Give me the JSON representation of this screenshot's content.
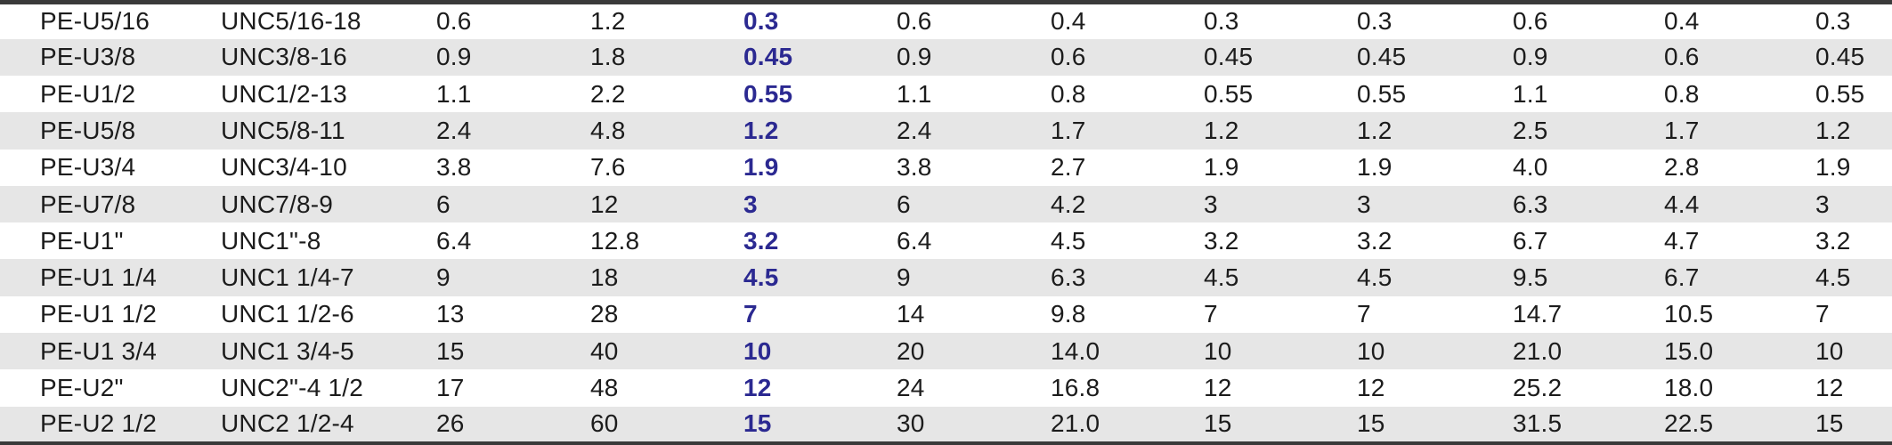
{
  "colors": {
    "accent_blue": "#2b2991",
    "stripe_gray": "#e6e6e6",
    "border_dark": "#3a3a3a",
    "text": "#1c1c1c",
    "background": "#ffffff"
  },
  "table": {
    "description": "striped spec table, no header row visible",
    "highlight_column_index": 4,
    "column_count": 12,
    "rows": [
      [
        "PE-U5/16",
        "UNC5/16-18",
        "0.6",
        "1.2",
        "0.3",
        "0.6",
        "0.4",
        "0.3",
        "0.3",
        "0.6",
        "0.4",
        "0.3"
      ],
      [
        "PE-U3/8",
        "UNC3/8-16",
        "0.9",
        "1.8",
        "0.45",
        "0.9",
        "0.6",
        "0.45",
        "0.45",
        "0.9",
        "0.6",
        "0.45"
      ],
      [
        "PE-U1/2",
        "UNC1/2-13",
        "1.1",
        "2.2",
        "0.55",
        "1.1",
        "0.8",
        "0.55",
        "0.55",
        "1.1",
        "0.8",
        "0.55"
      ],
      [
        "PE-U5/8",
        "UNC5/8-11",
        "2.4",
        "4.8",
        "1.2",
        "2.4",
        "1.7",
        "1.2",
        "1.2",
        "2.5",
        "1.7",
        "1.2"
      ],
      [
        "PE-U3/4",
        "UNC3/4-10",
        "3.8",
        "7.6",
        "1.9",
        "3.8",
        "2.7",
        "1.9",
        "1.9",
        "4.0",
        "2.8",
        "1.9"
      ],
      [
        "PE-U7/8",
        "UNC7/8-9",
        "6",
        "12",
        "3",
        "6",
        "4.2",
        "3",
        "3",
        "6.3",
        "4.4",
        "3"
      ],
      [
        "PE-U1\"",
        "UNC1\"-8",
        "6.4",
        "12.8",
        "3.2",
        "6.4",
        "4.5",
        "3.2",
        "3.2",
        "6.7",
        "4.7",
        "3.2"
      ],
      [
        "PE-U1 1/4",
        "UNC1 1/4-7",
        "9",
        "18",
        "4.5",
        "9",
        "6.3",
        "4.5",
        "4.5",
        "9.5",
        "6.7",
        "4.5"
      ],
      [
        "PE-U1 1/2",
        "UNC1 1/2-6",
        "13",
        "28",
        "7",
        "14",
        "9.8",
        "7",
        "7",
        "14.7",
        "10.5",
        "7"
      ],
      [
        "PE-U1 3/4",
        "UNC1 3/4-5",
        "15",
        "40",
        "10",
        "20",
        "14.0",
        "10",
        "10",
        "21.0",
        "15.0",
        "10"
      ],
      [
        "PE-U2\"",
        "UNC2\"-4 1/2",
        "17",
        "48",
        "12",
        "24",
        "16.8",
        "12",
        "12",
        "25.2",
        "18.0",
        "12"
      ],
      [
        "PE-U2 1/2",
        "UNC2 1/2-4",
        "26",
        "60",
        "15",
        "30",
        "21.0",
        "15",
        "15",
        "31.5",
        "22.5",
        "15"
      ]
    ],
    "column_names": [
      "pe-model",
      "unc-thread",
      "value-1",
      "value-2",
      "value-3-highlight",
      "value-4",
      "value-5",
      "value-6",
      "value-7",
      "value-8",
      "value-9",
      "value-10"
    ]
  }
}
